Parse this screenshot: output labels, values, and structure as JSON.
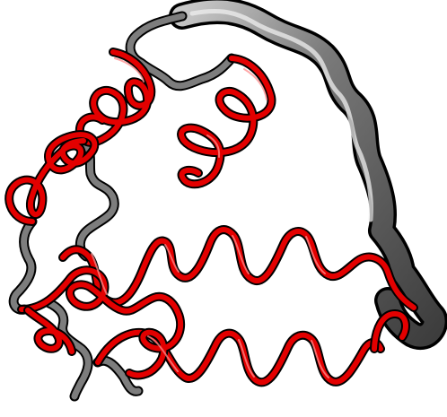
{
  "scene": {
    "kind": "protein ribbon rendering",
    "background": "#ffffff",
    "colors": {
      "helix": "#e30000",
      "helix_shadow": "#8f0000",
      "helix_highlight": "#ff7a7a",
      "coil": "#707070",
      "coil_shadow": "#2d2d2d",
      "coil_highlight": "#d7d7d7",
      "outline": "#000000"
    }
  }
}
